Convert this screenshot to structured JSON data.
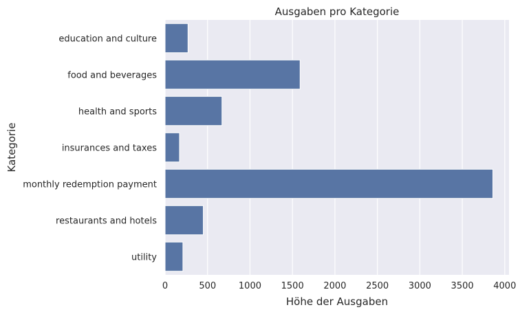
{
  "chart_data": {
    "type": "bar",
    "orientation": "horizontal",
    "title": "Ausgaben pro Kategorie",
    "xlabel": "Höhe der Ausgaben",
    "ylabel": "Kategorie",
    "categories": [
      "education and culture",
      "food and beverages",
      "health and sports",
      "insurances and taxes",
      "monthly redemption payment",
      "restaurants and hotels",
      "utility"
    ],
    "values": [
      270,
      1590,
      670,
      170,
      3860,
      450,
      210
    ],
    "xlim": [
      0,
      4050
    ],
    "xticks": [
      0,
      500,
      1000,
      1500,
      2000,
      2500,
      3000,
      3500,
      4000
    ],
    "grid": true,
    "bar_color": "#5875a4",
    "background_color": "#eaeaf2"
  }
}
